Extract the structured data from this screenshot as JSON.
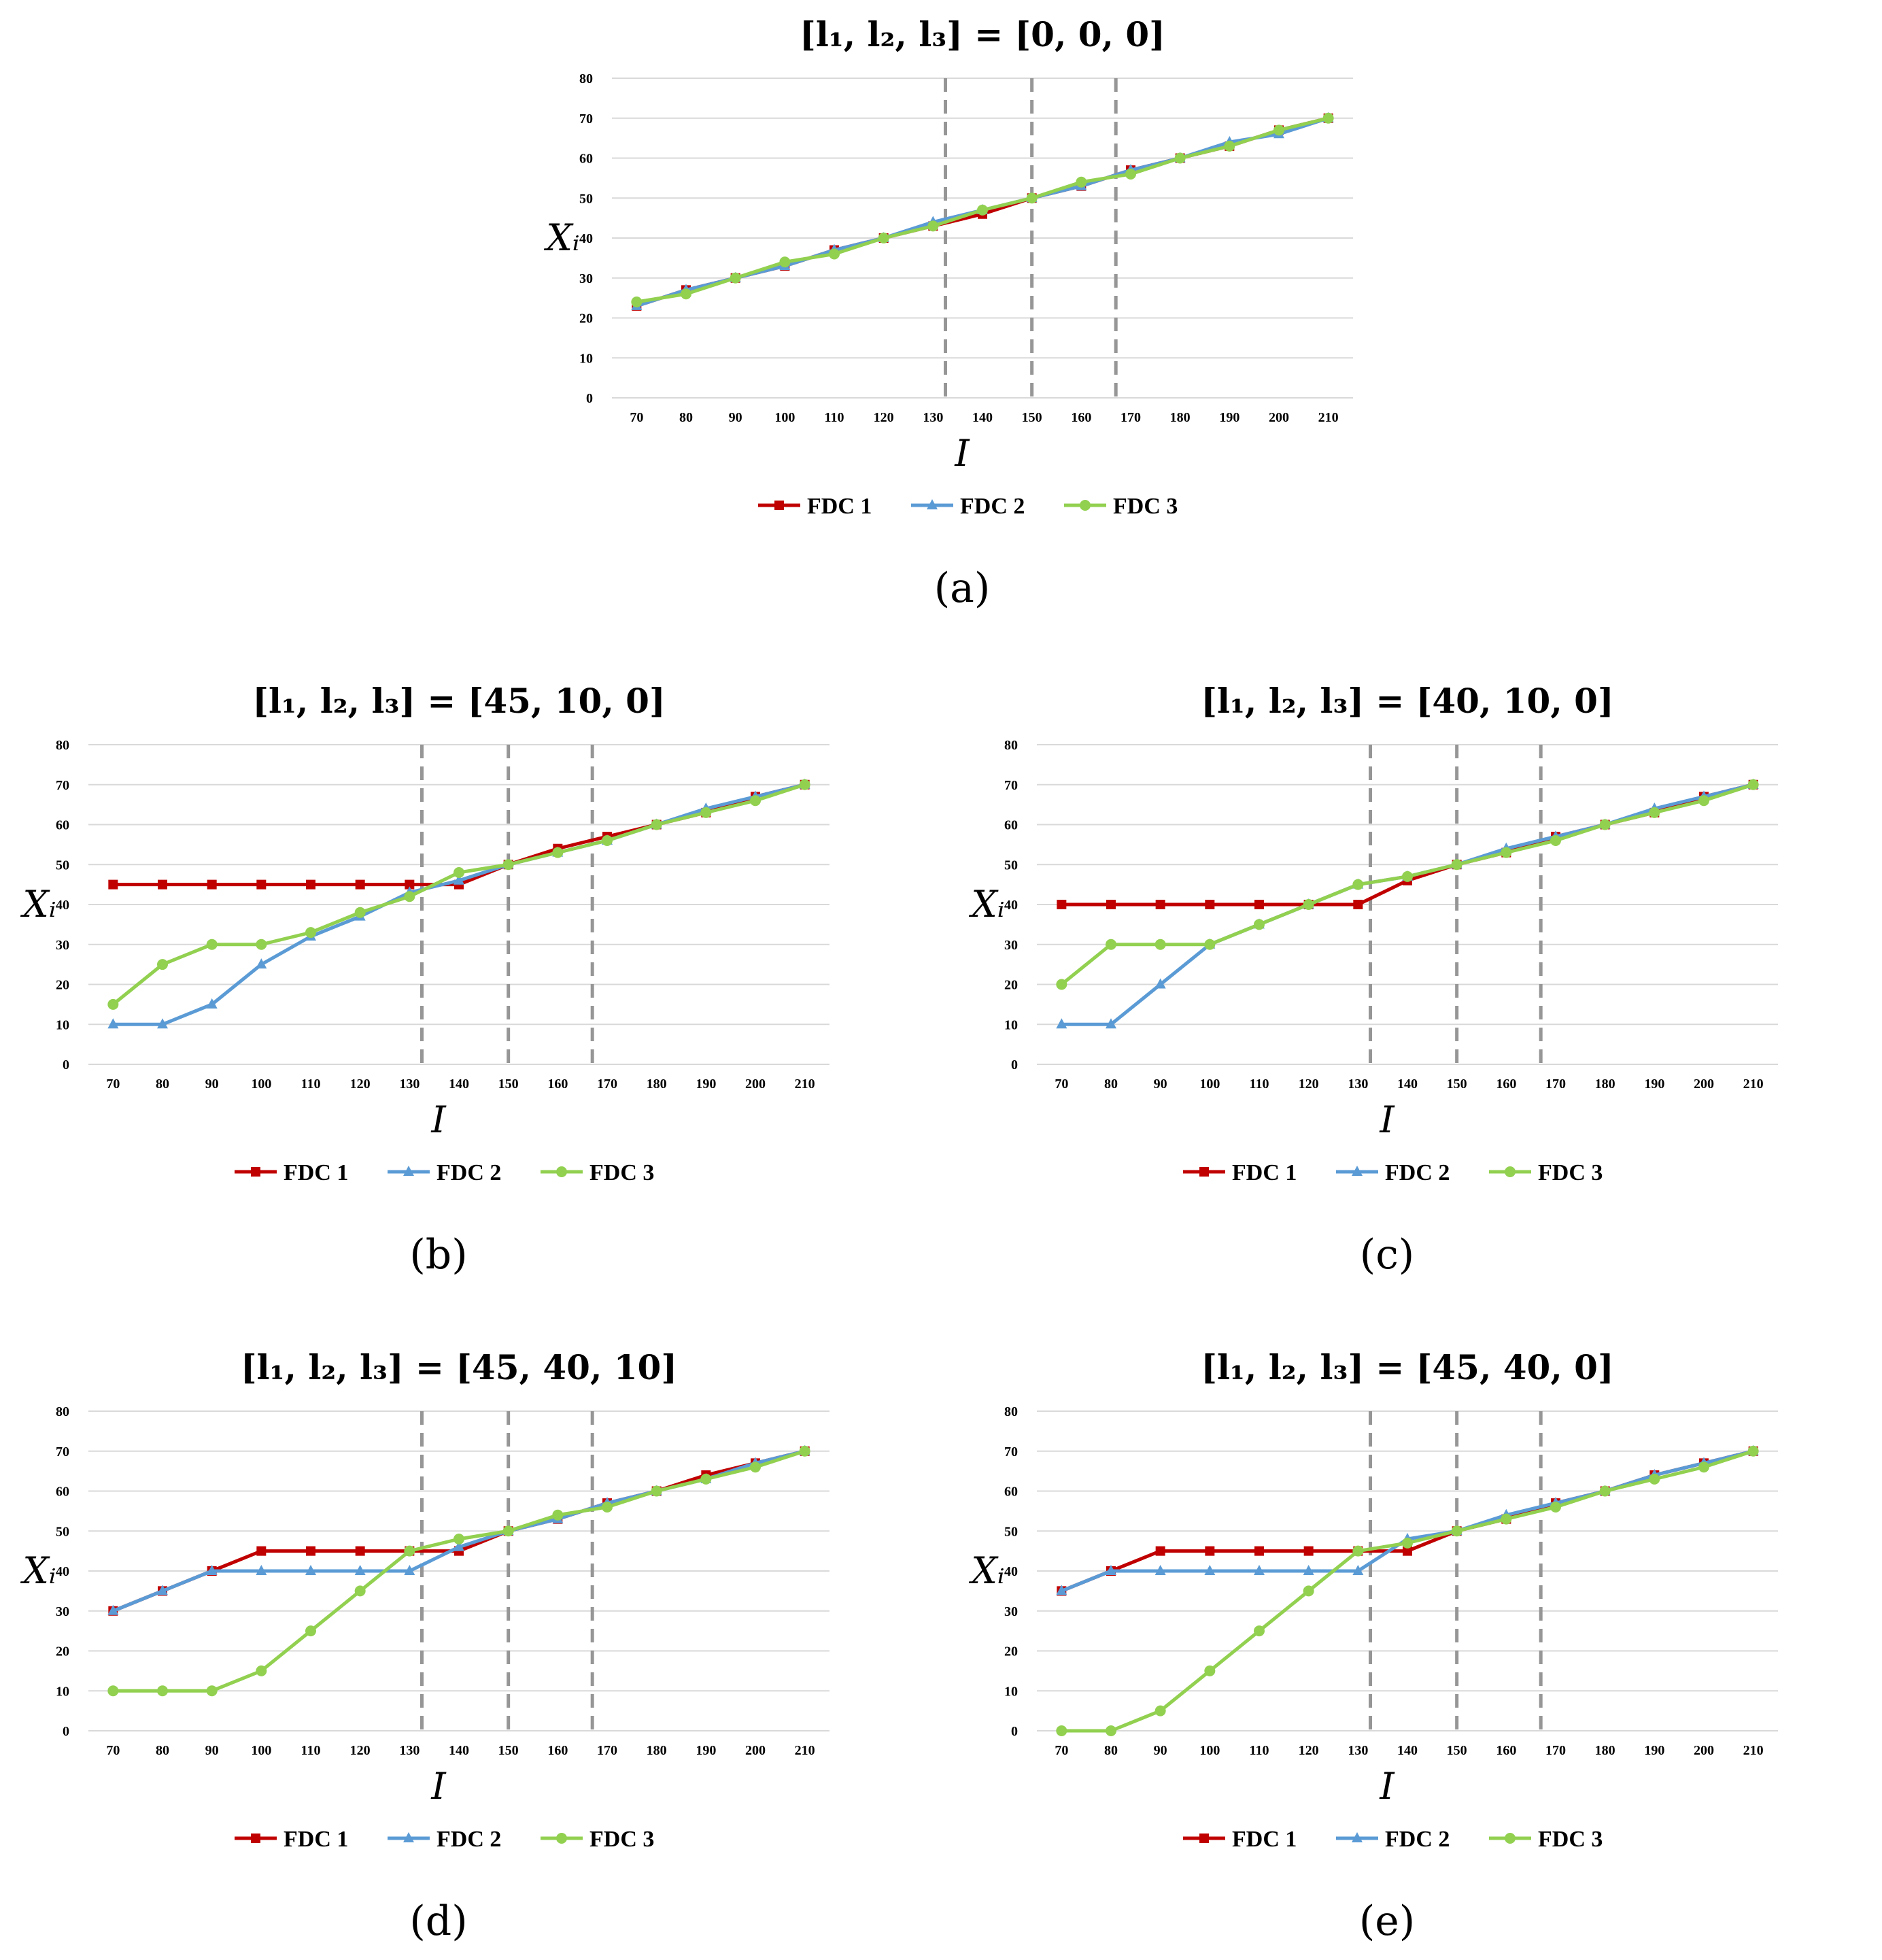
{
  "colors": {
    "FDC 1": "#c00000",
    "FDC 2": "#5b9bd5",
    "FDC 3": "#92d050",
    "reference": "#969696",
    "grid": "#d9d9d9"
  },
  "chart_data": [
    {
      "caption": "(a)",
      "title": "[l₁, l₂, l₃] = [0, 0, 0]",
      "type": "line",
      "xlabel": "I",
      "ylabel": "Xᵢ",
      "x": [
        70,
        80,
        90,
        100,
        110,
        120,
        130,
        140,
        150,
        160,
        170,
        180,
        190,
        200,
        210
      ],
      "ylim": [
        0,
        80
      ],
      "yticks": [
        0,
        10,
        20,
        30,
        40,
        50,
        60,
        70,
        80
      ],
      "grid": true,
      "legend": "bottom",
      "vlines": [
        132.5,
        150,
        167
      ],
      "series": [
        {
          "name": "FDC 1",
          "marker": "square",
          "values": [
            23,
            27,
            30,
            33,
            37,
            40,
            43,
            46,
            50,
            53,
            57,
            60,
            63,
            67,
            70
          ]
        },
        {
          "name": "FDC 2",
          "marker": "triangle",
          "values": [
            23,
            27,
            30,
            33,
            37,
            40,
            44,
            47,
            50,
            53,
            57,
            60,
            64,
            66,
            70
          ]
        },
        {
          "name": "FDC 3",
          "marker": "circle",
          "values": [
            24,
            26,
            30,
            34,
            36,
            40,
            43,
            47,
            50,
            54,
            56,
            60,
            63,
            67,
            70
          ]
        }
      ]
    },
    {
      "caption": "(b)",
      "title": "[l₁, l₂, l₃] = [45, 10, 0]",
      "type": "line",
      "xlabel": "I",
      "ylabel": "Xᵢ",
      "x": [
        70,
        80,
        90,
        100,
        110,
        120,
        130,
        140,
        150,
        160,
        170,
        180,
        190,
        200,
        210
      ],
      "ylim": [
        0,
        80
      ],
      "yticks": [
        0,
        10,
        20,
        30,
        40,
        50,
        60,
        70,
        80
      ],
      "grid": true,
      "legend": "bottom",
      "vlines": [
        132.5,
        150,
        167
      ],
      "series": [
        {
          "name": "FDC 1",
          "marker": "square",
          "values": [
            45,
            45,
            45,
            45,
            45,
            45,
            45,
            45,
            50,
            54,
            57,
            60,
            63,
            67,
            70
          ]
        },
        {
          "name": "FDC 2",
          "marker": "triangle",
          "values": [
            10,
            10,
            15,
            25,
            32,
            37,
            43,
            46,
            50,
            53,
            56,
            60,
            64,
            67,
            70
          ]
        },
        {
          "name": "FDC 3",
          "marker": "circle",
          "values": [
            15,
            25,
            30,
            30,
            33,
            38,
            42,
            48,
            50,
            53,
            56,
            60,
            63,
            66,
            70
          ]
        }
      ]
    },
    {
      "caption": "(c)",
      "title": "[l₁, l₂, l₃] = [40, 10, 0]",
      "type": "line",
      "xlabel": "I",
      "ylabel": "Xᵢ",
      "x": [
        70,
        80,
        90,
        100,
        110,
        120,
        130,
        140,
        150,
        160,
        170,
        180,
        190,
        200,
        210
      ],
      "ylim": [
        0,
        80
      ],
      "yticks": [
        0,
        10,
        20,
        30,
        40,
        50,
        60,
        70,
        80
      ],
      "grid": true,
      "legend": "bottom",
      "vlines": [
        132.5,
        150,
        167
      ],
      "series": [
        {
          "name": "FDC 1",
          "marker": "square",
          "values": [
            40,
            40,
            40,
            40,
            40,
            40,
            40,
            46,
            50,
            53,
            57,
            60,
            63,
            67,
            70
          ]
        },
        {
          "name": "FDC 2",
          "marker": "triangle",
          "values": [
            10,
            10,
            20,
            30,
            35,
            40,
            45,
            47,
            50,
            54,
            57,
            60,
            64,
            67,
            70
          ]
        },
        {
          "name": "FDC 3",
          "marker": "circle",
          "values": [
            20,
            30,
            30,
            30,
            35,
            40,
            45,
            47,
            50,
            53,
            56,
            60,
            63,
            66,
            70
          ]
        }
      ]
    },
    {
      "caption": "(d)",
      "title": "[l₁, l₂, l₃] = [45, 40, 10]",
      "type": "line",
      "xlabel": "I",
      "ylabel": "Xᵢ",
      "x": [
        70,
        80,
        90,
        100,
        110,
        120,
        130,
        140,
        150,
        160,
        170,
        180,
        190,
        200,
        210
      ],
      "ylim": [
        0,
        80
      ],
      "yticks": [
        0,
        10,
        20,
        30,
        40,
        50,
        60,
        70,
        80
      ],
      "grid": true,
      "legend": "bottom",
      "vlines": [
        132.5,
        150,
        167
      ],
      "series": [
        {
          "name": "FDC 1",
          "marker": "square",
          "values": [
            30,
            35,
            40,
            45,
            45,
            45,
            45,
            45,
            50,
            53,
            57,
            60,
            64,
            67,
            70
          ]
        },
        {
          "name": "FDC 2",
          "marker": "triangle",
          "values": [
            30,
            35,
            40,
            40,
            40,
            40,
            40,
            46,
            50,
            53,
            57,
            60,
            63,
            67,
            70
          ]
        },
        {
          "name": "FDC 3",
          "marker": "circle",
          "values": [
            10,
            10,
            10,
            15,
            25,
            35,
            45,
            48,
            50,
            54,
            56,
            60,
            63,
            66,
            70
          ]
        }
      ]
    },
    {
      "caption": "(e)",
      "title": "[l₁, l₂, l₃] = [45, 40, 0]",
      "type": "line",
      "xlabel": "I",
      "ylabel": "Xᵢ",
      "x": [
        70,
        80,
        90,
        100,
        110,
        120,
        130,
        140,
        150,
        160,
        170,
        180,
        190,
        200,
        210
      ],
      "ylim": [
        0,
        80
      ],
      "yticks": [
        0,
        10,
        20,
        30,
        40,
        50,
        60,
        70,
        80
      ],
      "grid": true,
      "legend": "bottom",
      "vlines": [
        132.5,
        150,
        167
      ],
      "series": [
        {
          "name": "FDC 1",
          "marker": "square",
          "values": [
            35,
            40,
            45,
            45,
            45,
            45,
            45,
            45,
            50,
            53,
            57,
            60,
            64,
            67,
            70
          ]
        },
        {
          "name": "FDC 2",
          "marker": "triangle",
          "values": [
            35,
            40,
            40,
            40,
            40,
            40,
            40,
            48,
            50,
            54,
            57,
            60,
            64,
            67,
            70
          ]
        },
        {
          "name": "FDC 3",
          "marker": "circle",
          "values": [
            0,
            0,
            5,
            15,
            25,
            35,
            45,
            47,
            50,
            53,
            56,
            60,
            63,
            66,
            70
          ]
        }
      ]
    }
  ]
}
